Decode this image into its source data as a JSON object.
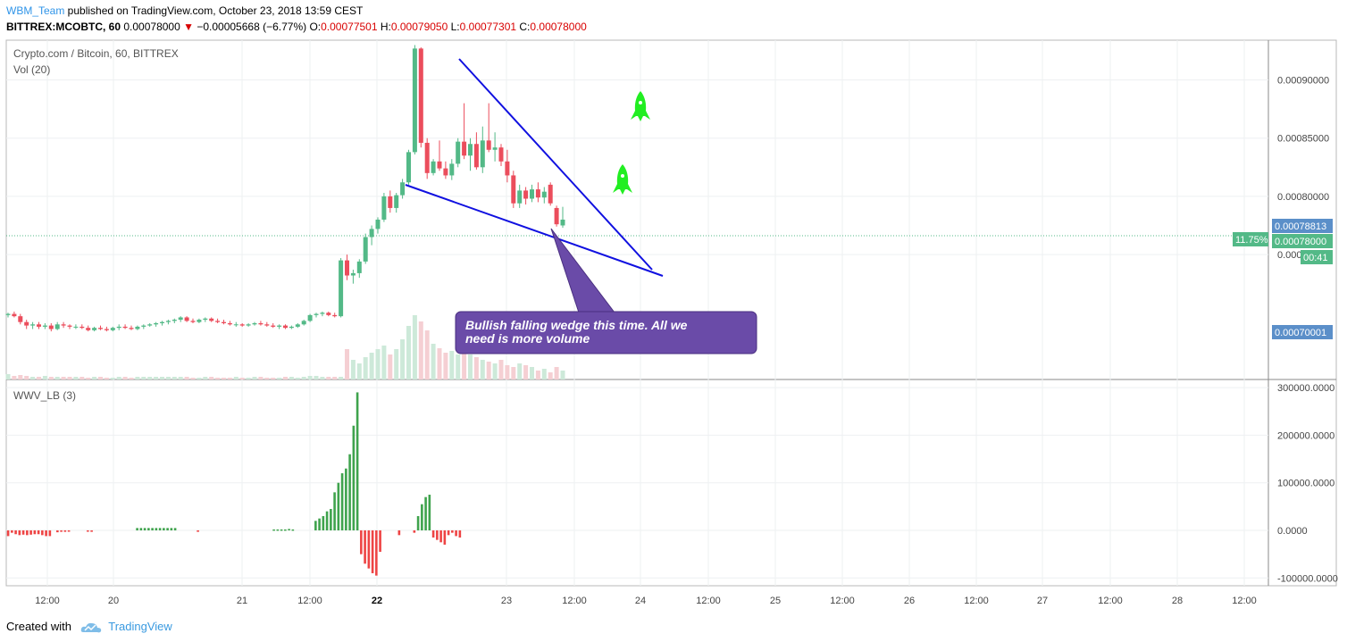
{
  "header": {
    "user": "WBM_Team",
    "published": " published on TradingView.com, October 23, 2018 13:59 CEST",
    "symbol": "BITTREX:MCOBTC, 60",
    "last": "0.00078000",
    "change": "−0.00005668 (−6.77%)",
    "o_label": "O:",
    "o_value": "0.00077501",
    "h_label": "H:",
    "h_value": "0.00079050",
    "l_label": "L:",
    "l_value": "0.00077301",
    "c_label": "C:",
    "c_value": "0.00078000"
  },
  "legend": {
    "main": "Crypto.com / Bitcoin, 60, BITTREX",
    "vol": "Vol (20)",
    "indicator": "WWV_LB (3)"
  },
  "footer": {
    "created": "Created with",
    "brand": "TradingView"
  },
  "colors": {
    "up": "#53b987",
    "down": "#eb4d5c",
    "wedge": "#1010e0",
    "callout": "#6a4ba8",
    "rocket": "#22ee22"
  },
  "chart_data": [
    {
      "type": "candlestick",
      "title": "Crypto.com / Bitcoin, 60, BITTREX",
      "x_ticks": [
        "12:00",
        "20",
        "21",
        "12:00",
        "22",
        "23",
        "12:00",
        "24",
        "12:00",
        "25",
        "12:00",
        "26",
        "12:00",
        "27",
        "12:00",
        "28",
        "12:00"
      ],
      "y_ticks": [
        "0.00090000",
        "0.00085000",
        "0.00080000",
        "0.00075000"
      ],
      "price_labels": [
        {
          "value": "0.00078813",
          "color": "#5b8fc9"
        },
        {
          "value": "0.00078000",
          "color": "#53b987",
          "badge": "11.75%"
        },
        {
          "value": "00:41",
          "color": "#53b987"
        },
        {
          "value": "0.00070001",
          "color": "#5b8fc9"
        }
      ],
      "ohlc": [
        [
          0.000698,
          0.0007,
          0.000696,
          0.000699
        ],
        [
          0.000699,
          0.000701,
          0.000696,
          0.000697
        ],
        [
          0.000697,
          0.000699,
          0.00069,
          0.000692
        ],
        [
          0.000692,
          0.000694,
          0.000686,
          0.000689
        ],
        [
          0.000689,
          0.000692,
          0.000686,
          0.00069
        ],
        [
          0.00069,
          0.000692,
          0.000686,
          0.000688
        ],
        [
          0.000688,
          0.000691,
          0.000686,
          0.000689
        ],
        [
          0.000689,
          0.000691,
          0.000684,
          0.000686
        ],
        [
          0.000686,
          0.000692,
          0.000685,
          0.00069
        ],
        [
          0.00069,
          0.000692,
          0.000687,
          0.000689
        ],
        [
          0.000689,
          0.00069,
          0.000686,
          0.000688
        ],
        [
          0.000688,
          0.00069,
          0.000686,
          0.000688
        ],
        [
          0.000688,
          0.00069,
          0.000686,
          0.000687
        ],
        [
          0.000687,
          0.000689,
          0.000684,
          0.000685
        ],
        [
          0.000685,
          0.000688,
          0.000684,
          0.000687
        ],
        [
          0.000687,
          0.000689,
          0.000685,
          0.000686
        ],
        [
          0.000686,
          0.000688,
          0.000684,
          0.000685
        ],
        [
          0.000685,
          0.000688,
          0.000684,
          0.000687
        ],
        [
          0.000687,
          0.00069,
          0.000685,
          0.000688
        ],
        [
          0.000688,
          0.00069,
          0.000686,
          0.000687
        ],
        [
          0.000687,
          0.000689,
          0.000685,
          0.000686
        ],
        [
          0.000686,
          0.000689,
          0.000685,
          0.000688
        ],
        [
          0.000688,
          0.00069,
          0.000686,
          0.000689
        ],
        [
          0.000689,
          0.000691,
          0.000688,
          0.00069
        ],
        [
          0.00069,
          0.000692,
          0.000688,
          0.000691
        ],
        [
          0.000691,
          0.000693,
          0.000689,
          0.000692
        ],
        [
          0.000692,
          0.000694,
          0.00069,
          0.000693
        ],
        [
          0.000693,
          0.000695,
          0.000691,
          0.000694
        ],
        [
          0.000694,
          0.000697,
          0.000692,
          0.000696
        ],
        [
          0.000696,
          0.000697,
          0.000692,
          0.000693
        ],
        [
          0.000693,
          0.000695,
          0.000691,
          0.000692
        ],
        [
          0.000692,
          0.000695,
          0.000691,
          0.000694
        ],
        [
          0.000694,
          0.000696,
          0.000692,
          0.000695
        ],
        [
          0.000695,
          0.000696,
          0.000692,
          0.000693
        ],
        [
          0.000693,
          0.000695,
          0.000691,
          0.000692
        ],
        [
          0.000692,
          0.000694,
          0.00069,
          0.000691
        ],
        [
          0.000691,
          0.000693,
          0.000689,
          0.00069
        ],
        [
          0.00069,
          0.000692,
          0.000688,
          0.00069
        ],
        [
          0.00069,
          0.000691,
          0.000688,
          0.000689
        ],
        [
          0.000689,
          0.000691,
          0.000688,
          0.00069
        ],
        [
          0.00069,
          0.000692,
          0.000689,
          0.000691
        ],
        [
          0.000691,
          0.000693,
          0.000689,
          0.00069
        ],
        [
          0.00069,
          0.000692,
          0.000688,
          0.000689
        ],
        [
          0.000689,
          0.000691,
          0.000687,
          0.000688
        ],
        [
          0.000688,
          0.00069,
          0.000686,
          0.000689
        ],
        [
          0.000689,
          0.00069,
          0.000686,
          0.000687
        ],
        [
          0.000687,
          0.000689,
          0.000686,
          0.000688
        ],
        [
          0.000688,
          0.000691,
          0.000687,
          0.00069
        ],
        [
          0.00069,
          0.000694,
          0.000689,
          0.000693
        ],
        [
          0.000693,
          0.000699,
          0.000692,
          0.000698
        ],
        [
          0.000698,
          0.0007,
          0.000696,
          0.000699
        ],
        [
          0.000699,
          0.000701,
          0.000697,
          0.0007
        ],
        [
          0.0007,
          0.000701,
          0.000697,
          0.000698
        ],
        [
          0.000698,
          0.0007,
          0.000696,
          0.000697
        ],
        [
          0.000697,
          0.000747,
          0.000696,
          0.000745
        ],
        [
          0.000745,
          0.00075,
          0.000728,
          0.000732
        ],
        [
          0.000732,
          0.000737,
          0.000725,
          0.000734
        ],
        [
          0.000734,
          0.000746,
          0.00073,
          0.000744
        ],
        [
          0.000744,
          0.000768,
          0.000742,
          0.000765
        ],
        [
          0.000765,
          0.000775,
          0.000758,
          0.000772
        ],
        [
          0.000772,
          0.000782,
          0.000768,
          0.00078
        ],
        [
          0.00078,
          0.000803,
          0.000778,
          0.0008
        ],
        [
          0.0008,
          0.000805,
          0.000786,
          0.00079
        ],
        [
          0.00079,
          0.000803,
          0.000786,
          0.000801
        ],
        [
          0.000801,
          0.000815,
          0.000798,
          0.000812
        ],
        [
          0.000812,
          0.00084,
          0.00081,
          0.000838
        ],
        [
          0.000838,
          0.00093,
          0.000836,
          0.000927
        ],
        [
          0.000927,
          0.000928,
          0.000842,
          0.000846
        ],
        [
          0.000846,
          0.00085,
          0.000815,
          0.00082
        ],
        [
          0.00082,
          0.000832,
          0.000818,
          0.00083
        ],
        [
          0.00083,
          0.000848,
          0.000822,
          0.000824
        ],
        [
          0.000824,
          0.00083,
          0.000815,
          0.000818
        ],
        [
          0.000818,
          0.000832,
          0.000814,
          0.000828
        ],
        [
          0.000828,
          0.00085,
          0.000825,
          0.000847
        ],
        [
          0.000847,
          0.00088,
          0.000832,
          0.000835
        ],
        [
          0.000835,
          0.00085,
          0.000822,
          0.000845
        ],
        [
          0.000845,
          0.000855,
          0.000823,
          0.000825
        ],
        [
          0.000825,
          0.00086,
          0.00082,
          0.000848
        ],
        [
          0.000848,
          0.00088,
          0.000838,
          0.00084
        ],
        [
          0.00084,
          0.000855,
          0.00083,
          0.000842
        ],
        [
          0.000842,
          0.000845,
          0.000826,
          0.00083
        ],
        [
          0.00083,
          0.00084,
          0.000812,
          0.000818
        ],
        [
          0.000818,
          0.000822,
          0.00079,
          0.000794
        ],
        [
          0.000794,
          0.00081,
          0.00079,
          0.000805
        ],
        [
          0.000805,
          0.000808,
          0.000793,
          0.000798
        ],
        [
          0.000798,
          0.00081,
          0.000795,
          0.000806
        ],
        [
          0.000806,
          0.000812,
          0.000795,
          0.000799
        ],
        [
          0.000799,
          0.000808,
          0.000794,
          0.000804
        ],
        [
          0.00081,
          0.000812,
          0.000792,
          0.000794
        ],
        [
          0.00079,
          0.000792,
          0.000774,
          0.000776
        ],
        [
          0.000775,
          0.000791,
          0.000773,
          0.00078
        ]
      ],
      "annotations": [
        {
          "type": "wedge",
          "upper_from": [
            "23 00:00",
            0.000927
          ],
          "upper_to": [
            "24 06:00",
            0.000752
          ],
          "lower_from": [
            "22 06:00",
            0.000823
          ],
          "lower_to": [
            "24 09:00",
            0.000747
          ]
        },
        {
          "type": "callout",
          "text": "Bullish falling wedge this time. All we need is more volume"
        },
        {
          "type": "rocket-icon"
        },
        {
          "type": "rocket-icon"
        }
      ]
    },
    {
      "type": "bar",
      "title": "Vol (20)",
      "note": "volume histogram, unscaled relative heights",
      "values": [
        6,
        4,
        5,
        4,
        3,
        3,
        4,
        3,
        3,
        3,
        3,
        3,
        3,
        2,
        3,
        3,
        2,
        2,
        3,
        3,
        2,
        3,
        3,
        3,
        3,
        3,
        3,
        3,
        3,
        3,
        2,
        2,
        3,
        3,
        2,
        2,
        2,
        3,
        2,
        2,
        3,
        3,
        2,
        2,
        2,
        3,
        3,
        2,
        3,
        4,
        4,
        3,
        3,
        3,
        3,
        34,
        22,
        18,
        25,
        30,
        34,
        38,
        28,
        34,
        45,
        60,
        72,
        65,
        55,
        40,
        35,
        30,
        32,
        28,
        30,
        28,
        25,
        22,
        20,
        18,
        22,
        16,
        14,
        18,
        16,
        14,
        10,
        12,
        8,
        14,
        10
      ]
    },
    {
      "type": "bar",
      "title": "WWV_LB (3)",
      "y_ticks": [
        "300000.0000",
        "200000.0000",
        "100000.0000",
        "0.0000",
        "-100000.0000"
      ],
      "values": [
        -12000,
        -5000,
        -8000,
        -10000,
        -9000,
        -10000,
        -9000,
        -8000,
        -8000,
        -10000,
        -12000,
        -12000,
        0,
        -4000,
        -3000,
        -3000,
        -2000,
        0,
        0,
        0,
        0,
        -2000,
        -3000,
        0,
        0,
        0,
        0,
        0,
        0,
        0,
        0,
        0,
        0,
        0,
        5000,
        5000,
        5000,
        5000,
        5000,
        5000,
        5000,
        5000,
        5000,
        5000,
        5000,
        0,
        0,
        0,
        0,
        0,
        -3000,
        0,
        0,
        0,
        0,
        0,
        0,
        0,
        0,
        0,
        0,
        0,
        0,
        0,
        0,
        0,
        0,
        0,
        0,
        0,
        2000,
        2000,
        2000,
        2000,
        3000,
        2000,
        0,
        0,
        0,
        0,
        0,
        20000,
        25000,
        30000,
        40000,
        45000,
        80000,
        100000,
        120000,
        130000,
        160000,
        220000,
        290000,
        -50000,
        -70000,
        -80000,
        -90000,
        -95000,
        -45000,
        0,
        0,
        0,
        0,
        -10000,
        0,
        0,
        0,
        -5000,
        30000,
        55000,
        70000,
        75000,
        -15000,
        -20000,
        -25000,
        -30000,
        -10000,
        -5000,
        -12000,
        -15000
      ]
    }
  ]
}
